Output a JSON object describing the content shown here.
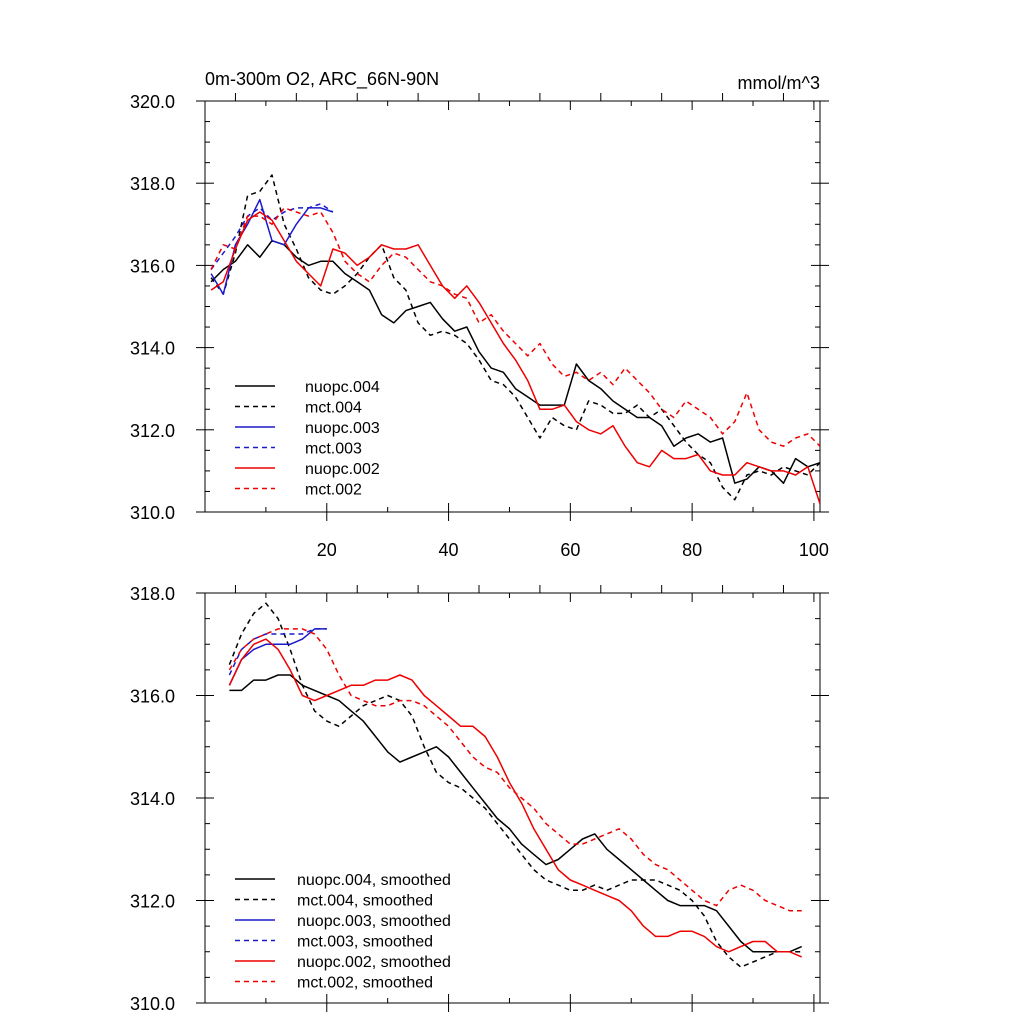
{
  "chart_data": [
    {
      "type": "line",
      "title": "0m-300m O2, ARC_66N-90N",
      "units": "mmol/m^3",
      "xlim": [
        0,
        101
      ],
      "ylim": [
        310,
        320
      ],
      "xticks": [
        20,
        40,
        60,
        80,
        100
      ],
      "xticklabels": [
        "20",
        "40",
        "60",
        "80",
        "100"
      ],
      "yticks": [
        310,
        312,
        314,
        316,
        318,
        320
      ],
      "yticklabels": [
        "310.0",
        "312.0",
        "314.0",
        "316.0",
        "318.0",
        "320.0"
      ],
      "legend_position": "bottom-left",
      "series": [
        {
          "name": "nuopc.004",
          "color": "#000000",
          "dash": "solid",
          "x": [
            1,
            3,
            5,
            7,
            9,
            11,
            13,
            15,
            17,
            19,
            21,
            23,
            25,
            27,
            29,
            31,
            33,
            35,
            37,
            39,
            41,
            43,
            45,
            47,
            49,
            51,
            53,
            55,
            57,
            59,
            61,
            63,
            65,
            67,
            69,
            71,
            73,
            75,
            77,
            79,
            81,
            83,
            85,
            87,
            89,
            91,
            93,
            95,
            97,
            99,
            101
          ],
          "y": [
            315.6,
            315.9,
            316.1,
            316.5,
            316.2,
            316.6,
            316.5,
            316.2,
            316.0,
            316.1,
            316.1,
            315.8,
            315.6,
            315.4,
            314.8,
            314.6,
            314.9,
            315.0,
            315.1,
            314.7,
            314.4,
            314.5,
            313.9,
            313.5,
            313.4,
            313.0,
            312.8,
            312.6,
            312.6,
            312.6,
            313.6,
            313.2,
            313.0,
            312.7,
            312.5,
            312.3,
            312.3,
            312.1,
            311.6,
            311.8,
            311.9,
            311.7,
            311.8,
            310.7,
            310.8,
            311.1,
            311.0,
            310.7,
            311.3,
            311.1,
            311.2
          ]
        },
        {
          "name": "mct.004",
          "color": "#000000",
          "dash": "dashed",
          "x": [
            1,
            3,
            5,
            7,
            9,
            11,
            13,
            15,
            17,
            19,
            21,
            23,
            25,
            27,
            29,
            31,
            33,
            35,
            37,
            39,
            41,
            43,
            45,
            47,
            49,
            51,
            53,
            55,
            57,
            59,
            61,
            63,
            65,
            67,
            69,
            71,
            73,
            75,
            77,
            79,
            81,
            83,
            85,
            87,
            89,
            91,
            93,
            95,
            97,
            99,
            101
          ],
          "y": [
            315.7,
            315.3,
            316.3,
            317.7,
            317.8,
            318.2,
            317.0,
            316.4,
            315.7,
            315.4,
            315.3,
            315.5,
            315.8,
            316.2,
            316.5,
            315.7,
            315.4,
            314.6,
            314.3,
            314.4,
            314.3,
            314.1,
            313.7,
            313.2,
            313.1,
            312.8,
            312.3,
            311.8,
            312.3,
            312.1,
            312.0,
            312.7,
            312.6,
            312.4,
            312.4,
            312.6,
            312.3,
            312.5,
            312.1,
            311.7,
            311.4,
            311.2,
            310.6,
            310.3,
            310.9,
            311.0,
            310.9,
            311.1,
            311.0,
            310.9,
            311.2
          ]
        },
        {
          "name": "nuopc.003",
          "color": "#1a1acc",
          "dash": "solid",
          "x": [
            1,
            3,
            5,
            7,
            9,
            11,
            13,
            15,
            17,
            19,
            21
          ],
          "y": [
            315.8,
            315.3,
            316.5,
            317.0,
            317.6,
            316.6,
            316.5,
            317.0,
            317.4,
            317.4,
            317.3
          ]
        },
        {
          "name": "mct.003",
          "color": "#1a1acc",
          "dash": "dashed",
          "x": [
            1,
            3,
            5,
            7,
            9,
            11,
            13,
            15,
            17,
            19,
            21
          ],
          "y": [
            315.9,
            316.3,
            316.7,
            317.2,
            317.4,
            317.1,
            317.3,
            317.4,
            317.4,
            317.5,
            317.3
          ]
        },
        {
          "name": "nuopc.002",
          "color": "#ee0000",
          "dash": "solid",
          "x": [
            1,
            3,
            5,
            7,
            9,
            11,
            13,
            15,
            17,
            19,
            21,
            23,
            25,
            27,
            29,
            31,
            33,
            35,
            37,
            39,
            41,
            43,
            45,
            47,
            49,
            51,
            53,
            55,
            57,
            59,
            61,
            63,
            65,
            67,
            69,
            71,
            73,
            75,
            77,
            79,
            81,
            83,
            85,
            87,
            89,
            91,
            93,
            95,
            97,
            99,
            101
          ],
          "y": [
            315.4,
            315.6,
            316.4,
            317.1,
            317.3,
            317.1,
            316.6,
            316.1,
            315.8,
            315.5,
            316.4,
            316.3,
            316.0,
            316.2,
            316.5,
            316.4,
            316.4,
            316.5,
            316.0,
            315.5,
            315.2,
            315.5,
            315.1,
            314.6,
            314.1,
            313.7,
            313.2,
            312.5,
            312.5,
            312.6,
            312.2,
            312.0,
            311.9,
            312.1,
            311.6,
            311.2,
            311.1,
            311.5,
            311.3,
            311.3,
            311.4,
            311.0,
            310.9,
            310.9,
            311.2,
            311.1,
            311.0,
            311.0,
            310.9,
            311.1,
            310.2
          ]
        },
        {
          "name": "mct.002",
          "color": "#ee0000",
          "dash": "dashed",
          "x": [
            1,
            3,
            5,
            7,
            9,
            11,
            13,
            15,
            17,
            19,
            21,
            23,
            25,
            27,
            29,
            31,
            33,
            35,
            37,
            39,
            41,
            43,
            45,
            47,
            49,
            51,
            53,
            55,
            57,
            59,
            61,
            63,
            65,
            67,
            69,
            71,
            73,
            75,
            77,
            79,
            81,
            83,
            85,
            87,
            89,
            91,
            93,
            95,
            97,
            99,
            101
          ],
          "y": [
            315.9,
            316.5,
            316.4,
            317.2,
            317.2,
            317.0,
            317.4,
            317.3,
            317.2,
            317.3,
            316.8,
            316.1,
            315.8,
            315.6,
            316.0,
            316.3,
            316.2,
            315.9,
            315.6,
            315.5,
            315.3,
            315.2,
            314.6,
            314.8,
            314.4,
            314.1,
            313.8,
            314.1,
            313.6,
            313.3,
            313.4,
            313.2,
            313.4,
            313.1,
            313.5,
            313.2,
            312.9,
            312.5,
            312.3,
            312.7,
            312.5,
            312.3,
            311.9,
            312.2,
            312.9,
            312.0,
            311.7,
            311.6,
            311.8,
            311.9,
            311.6
          ]
        }
      ]
    },
    {
      "type": "line",
      "title": "",
      "units": "",
      "xlim": [
        0,
        101
      ],
      "ylim": [
        310,
        318
      ],
      "xticks": [
        20,
        40,
        60,
        80,
        100
      ],
      "xticklabels": [],
      "yticks": [
        310,
        312,
        314,
        316,
        318
      ],
      "yticklabels": [
        "310.0",
        "312.0",
        "314.0",
        "316.0",
        "318.0"
      ],
      "legend_position": "bottom-left",
      "series": [
        {
          "name": "nuopc.004, smoothed",
          "color": "#000000",
          "dash": "solid",
          "x": [
            4,
            6,
            8,
            10,
            12,
            14,
            16,
            18,
            20,
            22,
            24,
            26,
            28,
            30,
            32,
            34,
            36,
            38,
            40,
            42,
            44,
            46,
            48,
            50,
            52,
            54,
            56,
            58,
            60,
            62,
            64,
            66,
            68,
            70,
            72,
            74,
            76,
            78,
            80,
            82,
            84,
            86,
            88,
            90,
            92,
            94,
            96,
            98
          ],
          "y": [
            316.1,
            316.1,
            316.3,
            316.3,
            316.4,
            316.4,
            316.2,
            316.1,
            316.0,
            315.9,
            315.7,
            315.5,
            315.2,
            314.9,
            314.7,
            314.8,
            314.9,
            315.0,
            314.8,
            314.5,
            314.2,
            313.9,
            313.6,
            313.4,
            313.1,
            312.9,
            312.7,
            312.8,
            313.0,
            313.2,
            313.3,
            313.0,
            312.8,
            312.6,
            312.4,
            312.2,
            312.0,
            311.9,
            311.9,
            311.9,
            311.8,
            311.5,
            311.2,
            311.0,
            311.0,
            311.0,
            311.0,
            311.1
          ]
        },
        {
          "name": "mct.004, smoothed",
          "color": "#000000",
          "dash": "dashed",
          "x": [
            4,
            6,
            8,
            10,
            12,
            14,
            16,
            18,
            20,
            22,
            24,
            26,
            28,
            30,
            32,
            34,
            36,
            38,
            40,
            42,
            44,
            46,
            48,
            50,
            52,
            54,
            56,
            58,
            60,
            62,
            64,
            66,
            68,
            70,
            72,
            74,
            76,
            78,
            80,
            82,
            84,
            86,
            88,
            90,
            92,
            94,
            96,
            98
          ],
          "y": [
            316.6,
            317.2,
            317.6,
            317.8,
            317.5,
            316.9,
            316.2,
            315.7,
            315.5,
            315.4,
            315.6,
            315.8,
            315.9,
            316.0,
            315.9,
            315.6,
            315.0,
            314.5,
            314.3,
            314.2,
            314.0,
            313.8,
            313.5,
            313.2,
            312.9,
            312.6,
            312.4,
            312.3,
            312.2,
            312.2,
            312.3,
            312.2,
            312.3,
            312.4,
            312.4,
            312.4,
            312.3,
            312.2,
            312.0,
            311.7,
            311.2,
            310.9,
            310.7,
            310.8,
            310.9,
            311.0,
            311.0,
            311.0
          ]
        },
        {
          "name": "nuopc.003, smoothed",
          "color": "#1a1acc",
          "dash": "solid",
          "x": [
            4,
            6,
            8,
            10,
            12,
            14,
            16,
            18,
            20
          ],
          "y": [
            316.2,
            316.7,
            316.9,
            317.0,
            317.0,
            317.0,
            317.1,
            317.3,
            317.3
          ]
        },
        {
          "name": "mct.003, smoothed",
          "color": "#1a1acc",
          "dash": "dashed",
          "x": [
            4,
            6,
            8,
            10,
            12,
            14,
            16,
            18,
            20
          ],
          "y": [
            316.4,
            316.9,
            317.1,
            317.2,
            317.2,
            317.2,
            317.2,
            317.3,
            317.3
          ]
        },
        {
          "name": "nuopc.002, smoothed",
          "color": "#ee0000",
          "dash": "solid",
          "x": [
            4,
            6,
            8,
            10,
            12,
            14,
            16,
            18,
            20,
            22,
            24,
            26,
            28,
            30,
            32,
            34,
            36,
            38,
            40,
            42,
            44,
            46,
            48,
            50,
            52,
            54,
            56,
            58,
            60,
            62,
            64,
            66,
            68,
            70,
            72,
            74,
            76,
            78,
            80,
            82,
            84,
            86,
            88,
            90,
            92,
            94,
            96,
            98
          ],
          "y": [
            316.2,
            316.7,
            317.0,
            317.1,
            316.9,
            316.5,
            316.0,
            315.9,
            316.0,
            316.1,
            316.2,
            316.2,
            316.3,
            316.3,
            316.4,
            316.3,
            316.0,
            315.8,
            315.6,
            315.4,
            315.4,
            315.2,
            314.8,
            314.3,
            313.9,
            313.4,
            313.0,
            312.6,
            312.4,
            312.3,
            312.2,
            312.1,
            312.0,
            311.8,
            311.5,
            311.3,
            311.3,
            311.4,
            311.4,
            311.3,
            311.1,
            311.0,
            311.1,
            311.2,
            311.2,
            311.0,
            311.0,
            310.9
          ]
        },
        {
          "name": "mct.002, smoothed",
          "color": "#ee0000",
          "dash": "dashed",
          "x": [
            4,
            6,
            8,
            10,
            12,
            14,
            16,
            18,
            20,
            22,
            24,
            26,
            28,
            30,
            32,
            34,
            36,
            38,
            40,
            42,
            44,
            46,
            48,
            50,
            52,
            54,
            56,
            58,
            60,
            62,
            64,
            66,
            68,
            70,
            72,
            74,
            76,
            78,
            80,
            82,
            84,
            86,
            88,
            90,
            92,
            94,
            96,
            98
          ],
          "y": [
            316.5,
            316.9,
            317.1,
            317.2,
            317.3,
            317.3,
            317.3,
            317.2,
            316.9,
            316.4,
            316.0,
            315.9,
            315.8,
            315.8,
            315.9,
            315.9,
            315.8,
            315.6,
            315.4,
            315.1,
            314.8,
            314.6,
            314.5,
            314.2,
            314.0,
            313.8,
            313.5,
            313.3,
            313.1,
            313.1,
            313.2,
            313.3,
            313.4,
            313.2,
            312.9,
            312.7,
            312.6,
            312.4,
            312.2,
            312.0,
            311.9,
            312.2,
            312.3,
            312.2,
            312.0,
            311.9,
            311.8,
            311.8
          ]
        }
      ]
    }
  ]
}
